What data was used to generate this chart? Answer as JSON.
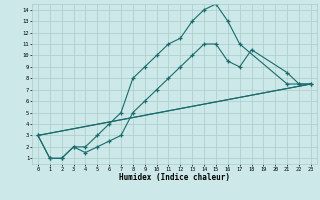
{
  "title": "",
  "xlabel": "Humidex (Indice chaleur)",
  "bg_color": "#cce8e8",
  "grid_color": "#aacccc",
  "line_color": "#1a6b6b",
  "xlim": [
    0,
    23
  ],
  "ylim": [
    1,
    14
  ],
  "xticks": [
    0,
    1,
    2,
    3,
    4,
    5,
    6,
    7,
    8,
    9,
    10,
    11,
    12,
    13,
    14,
    15,
    16,
    17,
    18,
    19,
    20,
    21,
    22,
    23
  ],
  "yticks": [
    1,
    2,
    3,
    4,
    5,
    6,
    7,
    8,
    9,
    10,
    11,
    12,
    13,
    14
  ],
  "s1x": [
    0,
    1,
    2,
    3,
    4,
    5,
    6,
    7,
    8,
    9,
    10,
    11,
    12,
    13,
    14,
    15,
    16,
    17,
    21,
    22,
    23
  ],
  "s1y": [
    3,
    1,
    1,
    2,
    2,
    3,
    4,
    5,
    8,
    9,
    10,
    11,
    11.5,
    13,
    14,
    14.5,
    13,
    11,
    7.5,
    7.5,
    7.5
  ],
  "s2x": [
    0,
    1,
    2,
    3,
    4,
    5,
    6,
    7,
    8,
    9,
    10,
    11,
    12,
    13,
    14,
    15,
    16,
    17,
    18,
    21,
    22,
    23
  ],
  "s2y": [
    3,
    1,
    1,
    2,
    1.5,
    2,
    2.5,
    3,
    5,
    6,
    7,
    8,
    9,
    10,
    11,
    11,
    9.5,
    9,
    10.5,
    8.5,
    7.5,
    7.5
  ],
  "s3x": [
    0,
    23
  ],
  "s3y": [
    3,
    7.5
  ],
  "s4x": [
    0,
    23
  ],
  "s4y": [
    3,
    7.5
  ]
}
